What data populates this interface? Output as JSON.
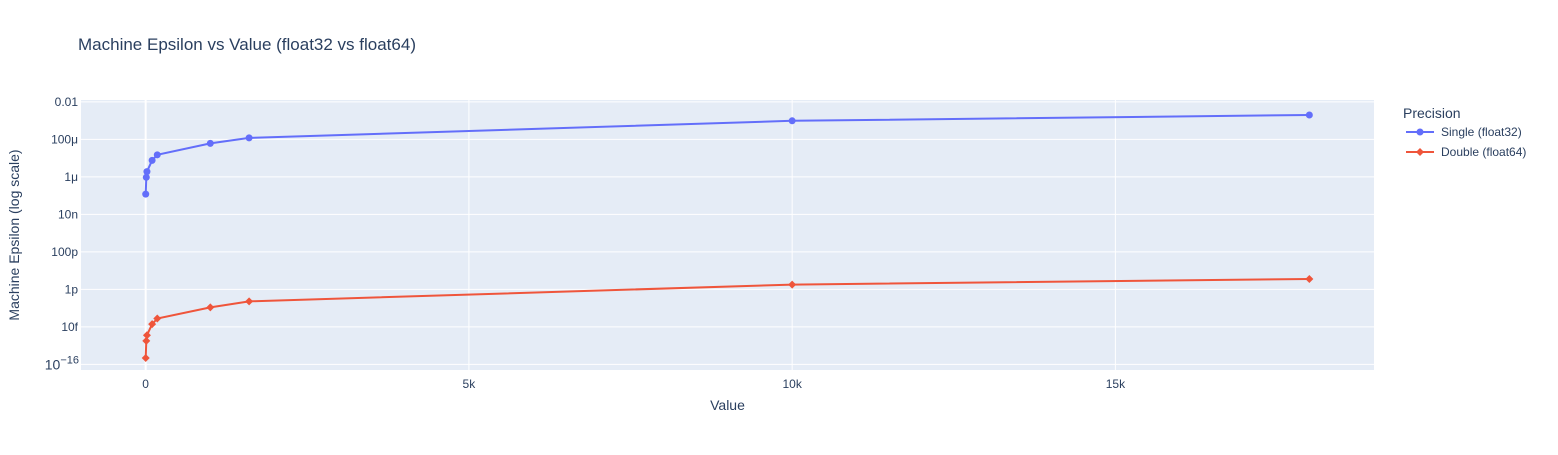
{
  "chart_data": {
    "type": "line",
    "title": "Machine Epsilon vs Value (float32 vs float64)",
    "xlabel": "Value",
    "ylabel": "Machine Epsilon (log scale)",
    "y_scale": "log",
    "xlim": [
      -1000,
      19000
    ],
    "ylim_exponent": [
      -16.3,
      -1.9
    ],
    "grid": true,
    "legend": {
      "title": "Precision",
      "position": "right"
    },
    "x_ticks": [
      {
        "value": 0,
        "label": "0"
      },
      {
        "value": 5000,
        "label": "5k"
      },
      {
        "value": 10000,
        "label": "10k"
      },
      {
        "value": 15000,
        "label": "15k"
      }
    ],
    "y_ticks": [
      {
        "exp": -2,
        "label": "0.01"
      },
      {
        "exp": -4,
        "label": "100μ"
      },
      {
        "exp": -6,
        "label": "1μ"
      },
      {
        "exp": -8,
        "label": "10n"
      },
      {
        "exp": -10,
        "label": "100p"
      },
      {
        "exp": -12,
        "label": "1p"
      },
      {
        "exp": -14,
        "label": "10f"
      },
      {
        "exp": -16,
        "label": "10",
        "superscript": "−16"
      }
    ],
    "series": [
      {
        "name": "Single (float32)",
        "color": "#636efa",
        "marker": "circle",
        "x": [
          1,
          10,
          20,
          100,
          180,
          1000,
          1600,
          10000,
          18000
        ],
        "y": [
          1.2e-07,
          9.5e-07,
          1.9e-06,
          7.6e-06,
          1.5e-05,
          6.1e-05,
          0.00012,
          0.00098,
          0.002
        ]
      },
      {
        "name": "Double (float64)",
        "color": "#ef553b",
        "marker": "diamond",
        "x": [
          1,
          10,
          20,
          100,
          180,
          1000,
          1600,
          10000,
          18000
        ],
        "y": [
          2.2e-16,
          1.8e-15,
          3.6e-15,
          1.4e-14,
          2.8e-14,
          1.1e-13,
          2.3e-13,
          1.8e-12,
          3.6e-12
        ]
      }
    ]
  }
}
